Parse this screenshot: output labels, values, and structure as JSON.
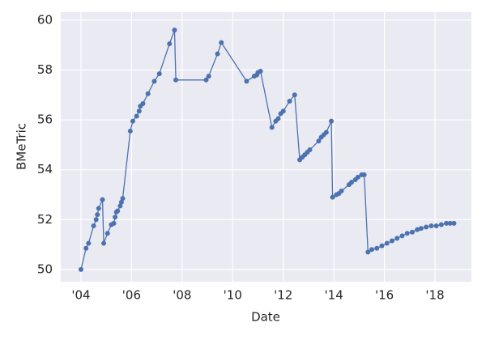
{
  "chart_data": {
    "type": "line",
    "xlabel": "Date",
    "ylabel": "BMeTric",
    "x": [
      2004.0,
      2004.2,
      2004.3,
      2004.5,
      2004.6,
      2004.65,
      2004.7,
      2004.85,
      2004.9,
      2005.05,
      2005.2,
      2005.3,
      2005.35,
      2005.4,
      2005.45,
      2005.55,
      2005.6,
      2005.65,
      2005.95,
      2006.05,
      2006.2,
      2006.3,
      2006.35,
      2006.45,
      2006.65,
      2006.9,
      2007.1,
      2007.5,
      2007.7,
      2007.75,
      2008.95,
      2009.05,
      2009.4,
      2009.55,
      2010.55,
      2010.85,
      2010.95,
      2011.0,
      2011.1,
      2011.55,
      2011.7,
      2011.8,
      2011.9,
      2012.0,
      2012.25,
      2012.45,
      2012.65,
      2012.75,
      2012.85,
      2012.95,
      2013.05,
      2013.4,
      2013.5,
      2013.6,
      2013.7,
      2013.9,
      2013.95,
      2014.1,
      2014.2,
      2014.3,
      2014.6,
      2014.7,
      2014.85,
      2014.95,
      2015.1,
      2015.2,
      2015.35,
      2015.5,
      2015.7,
      2015.9,
      2016.1,
      2016.3,
      2016.5,
      2016.7,
      2016.9,
      2017.1,
      2017.3,
      2017.45,
      2017.65,
      2017.85,
      2018.05,
      2018.25,
      2018.45,
      2018.6,
      2018.75
    ],
    "values": [
      50.0,
      50.85,
      51.05,
      51.75,
      52.0,
      52.2,
      52.45,
      52.8,
      51.05,
      51.45,
      51.8,
      51.85,
      52.1,
      52.3,
      52.35,
      52.55,
      52.7,
      52.85,
      55.55,
      55.95,
      56.15,
      56.35,
      56.55,
      56.65,
      57.05,
      57.55,
      57.85,
      59.05,
      59.6,
      57.6,
      57.6,
      57.75,
      58.65,
      59.1,
      57.55,
      57.75,
      57.8,
      57.9,
      57.95,
      55.7,
      55.95,
      56.05,
      56.25,
      56.35,
      56.75,
      57.0,
      54.4,
      54.5,
      54.6,
      54.7,
      54.8,
      55.15,
      55.3,
      55.4,
      55.5,
      55.95,
      52.9,
      53.0,
      53.05,
      53.15,
      53.4,
      53.5,
      53.6,
      53.7,
      53.8,
      53.8,
      50.7,
      50.8,
      50.85,
      50.95,
      51.05,
      51.15,
      51.25,
      51.35,
      51.45,
      51.5,
      51.6,
      51.65,
      51.7,
      51.75,
      51.75,
      51.8,
      51.85,
      51.85,
      51.85
    ],
    "color": "#4c72b0",
    "xlim": [
      2003.2,
      2019.44
    ],
    "ylim": [
      49.51,
      60.32
    ],
    "xticks": [
      {
        "value": 2004,
        "label": "'04"
      },
      {
        "value": 2006,
        "label": "'06"
      },
      {
        "value": 2008,
        "label": "'08"
      },
      {
        "value": 2010,
        "label": "'10"
      },
      {
        "value": 2012,
        "label": "'12"
      },
      {
        "value": 2014,
        "label": "'14"
      },
      {
        "value": 2016,
        "label": "'16"
      },
      {
        "value": 2018,
        "label": "'18"
      }
    ],
    "yticks": [
      50,
      52,
      54,
      56,
      58,
      60
    ],
    "grid": true
  }
}
